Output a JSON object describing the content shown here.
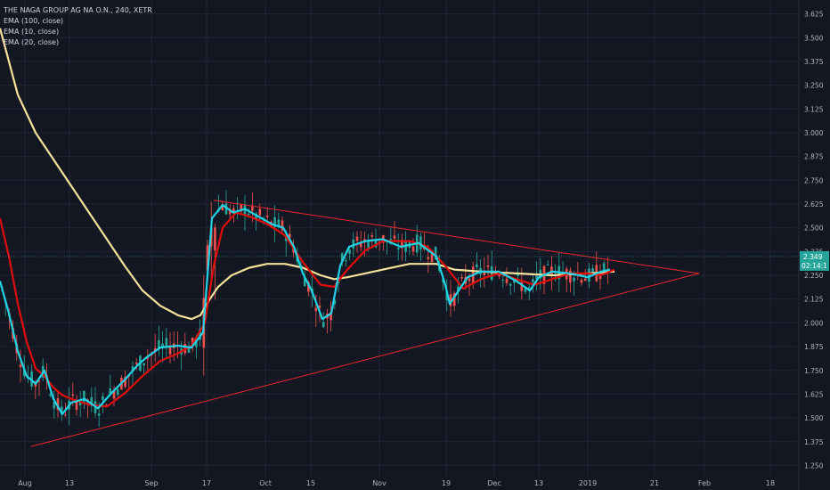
{
  "header": {
    "symbol_line": "THE NAGA GROUP AG NA O.N., 240, XETR",
    "indicators": [
      "EMA (100, close)",
      "EMA (10, close)",
      "EMA (20, close)"
    ]
  },
  "chart_data": {
    "type": "candlestick",
    "title": "THE NAGA GROUP AG NA O.N., 240, XETR",
    "y_ticks": [
      "3.625",
      "3.500",
      "3.375",
      "3.250",
      "3.125",
      "3.000",
      "2.875",
      "2.750",
      "2.625",
      "2.500",
      "2.375",
      "2.250",
      "2.125",
      "2.000",
      "1.875",
      "1.750",
      "1.625",
      "1.500",
      "1.375",
      "1.250"
    ],
    "x_ticks": [
      "Aug",
      "13",
      "Sep",
      "17",
      "Oct",
      "15",
      "Nov",
      "19",
      "Dec",
      "13",
      "2019",
      "21",
      "Feb",
      "18"
    ],
    "ylim": [
      1.21,
      3.67
    ],
    "last_price": "2.349",
    "countdown": "02:14:1",
    "colors": {
      "background": "#131722",
      "grid": "#1f2433",
      "up": "#26a69a",
      "down": "#ef5350",
      "ema100": "#f5e29a",
      "ema10": "#22d3e6",
      "ema20": "#e00d0d",
      "trendline": "#e8262b",
      "price_tag": "#26a69a"
    },
    "series": [
      {
        "name": "EMA (100, close)",
        "color": "#f5e29a",
        "points": [
          [
            0,
            3.55
          ],
          [
            20,
            3.2
          ],
          [
            40,
            3.0
          ],
          [
            60,
            2.86
          ],
          [
            80,
            2.72
          ],
          [
            100,
            2.58
          ],
          [
            120,
            2.44
          ],
          [
            140,
            2.3
          ],
          [
            160,
            2.17
          ],
          [
            180,
            2.09
          ],
          [
            200,
            2.04
          ],
          [
            215,
            2.02
          ],
          [
            225,
            2.04
          ],
          [
            235,
            2.12
          ],
          [
            245,
            2.19
          ],
          [
            260,
            2.25
          ],
          [
            280,
            2.29
          ],
          [
            300,
            2.31
          ],
          [
            320,
            2.31
          ],
          [
            340,
            2.29
          ],
          [
            360,
            2.25
          ],
          [
            375,
            2.23
          ],
          [
            390,
            2.24
          ],
          [
            410,
            2.26
          ],
          [
            430,
            2.28
          ],
          [
            460,
            2.31
          ],
          [
            490,
            2.31
          ],
          [
            510,
            2.28
          ],
          [
            540,
            2.27
          ],
          [
            580,
            2.26
          ],
          [
            620,
            2.25
          ],
          [
            660,
            2.26
          ],
          [
            690,
            2.27
          ]
        ]
      },
      {
        "name": "EMA (20, close)",
        "color": "#e00d0d",
        "points": [
          [
            0,
            2.55
          ],
          [
            10,
            2.35
          ],
          [
            20,
            2.1
          ],
          [
            30,
            1.9
          ],
          [
            40,
            1.76
          ],
          [
            50,
            1.72
          ],
          [
            60,
            1.66
          ],
          [
            70,
            1.62
          ],
          [
            80,
            1.6
          ],
          [
            100,
            1.57
          ],
          [
            120,
            1.56
          ],
          [
            140,
            1.63
          ],
          [
            160,
            1.72
          ],
          [
            180,
            1.8
          ],
          [
            200,
            1.84
          ],
          [
            215,
            1.88
          ],
          [
            230,
            2.0
          ],
          [
            240,
            2.3
          ],
          [
            250,
            2.5
          ],
          [
            265,
            2.58
          ],
          [
            280,
            2.56
          ],
          [
            300,
            2.52
          ],
          [
            320,
            2.46
          ],
          [
            340,
            2.32
          ],
          [
            360,
            2.2
          ],
          [
            375,
            2.19
          ],
          [
            390,
            2.28
          ],
          [
            410,
            2.38
          ],
          [
            430,
            2.43
          ],
          [
            460,
            2.43
          ],
          [
            480,
            2.4
          ],
          [
            500,
            2.3
          ],
          [
            520,
            2.18
          ],
          [
            540,
            2.23
          ],
          [
            560,
            2.26
          ],
          [
            580,
            2.23
          ],
          [
            600,
            2.2
          ],
          [
            620,
            2.23
          ],
          [
            640,
            2.26
          ],
          [
            660,
            2.26
          ],
          [
            675,
            2.25
          ],
          [
            690,
            2.28
          ]
        ]
      },
      {
        "name": "EMA (10, close)",
        "color": "#22d3e6",
        "points": [
          [
            0,
            2.22
          ],
          [
            10,
            2.05
          ],
          [
            20,
            1.85
          ],
          [
            30,
            1.72
          ],
          [
            40,
            1.68
          ],
          [
            50,
            1.75
          ],
          [
            60,
            1.6
          ],
          [
            70,
            1.52
          ],
          [
            80,
            1.58
          ],
          [
            95,
            1.6
          ],
          [
            110,
            1.55
          ],
          [
            125,
            1.63
          ],
          [
            140,
            1.7
          ],
          [
            155,
            1.78
          ],
          [
            165,
            1.82
          ],
          [
            180,
            1.87
          ],
          [
            200,
            1.88
          ],
          [
            215,
            1.87
          ],
          [
            228,
            1.95
          ],
          [
            238,
            2.55
          ],
          [
            250,
            2.62
          ],
          [
            262,
            2.58
          ],
          [
            275,
            2.6
          ],
          [
            290,
            2.56
          ],
          [
            305,
            2.52
          ],
          [
            318,
            2.5
          ],
          [
            330,
            2.4
          ],
          [
            340,
            2.26
          ],
          [
            350,
            2.17
          ],
          [
            362,
            2.02
          ],
          [
            372,
            2.05
          ],
          [
            382,
            2.3
          ],
          [
            392,
            2.4
          ],
          [
            410,
            2.43
          ],
          [
            430,
            2.44
          ],
          [
            450,
            2.4
          ],
          [
            470,
            2.42
          ],
          [
            490,
            2.35
          ],
          [
            500,
            2.2
          ],
          [
            505,
            2.1
          ],
          [
            515,
            2.17
          ],
          [
            525,
            2.24
          ],
          [
            540,
            2.27
          ],
          [
            560,
            2.27
          ],
          [
            580,
            2.22
          ],
          [
            595,
            2.17
          ],
          [
            605,
            2.24
          ],
          [
            620,
            2.27
          ],
          [
            640,
            2.26
          ],
          [
            660,
            2.24
          ],
          [
            675,
            2.27
          ],
          [
            685,
            2.28
          ]
        ]
      }
    ],
    "trendlines": [
      {
        "name": "upper",
        "points": [
          [
            240,
            2.645
          ],
          [
            785,
            2.26
          ]
        ]
      },
      {
        "name": "lower",
        "points": [
          [
            35,
            1.35
          ],
          [
            785,
            2.26
          ]
        ]
      }
    ]
  }
}
